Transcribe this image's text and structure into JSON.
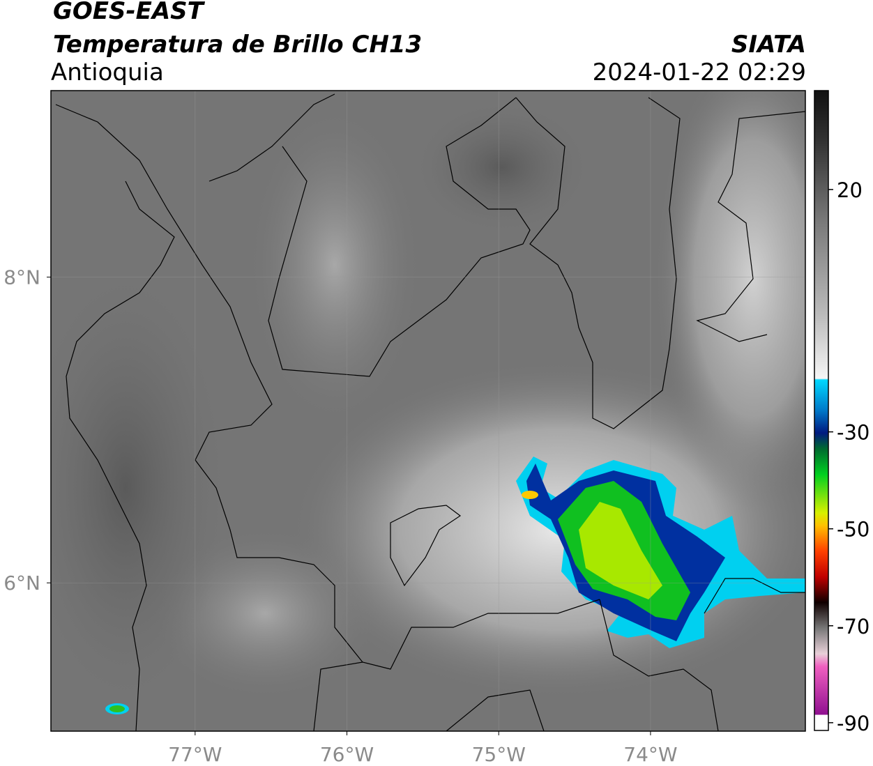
{
  "header": {
    "satellite": "GOES-EAST",
    "product": "Temperatura de Brillo CH13",
    "region": "Antioquia",
    "source": "SIATA",
    "datetime": "2024-01-22 02:29"
  },
  "map": {
    "xlim": [
      -77.95,
      -72.98
    ],
    "ylim": [
      5.03,
      9.22
    ],
    "xticks": [
      {
        "value": -77,
        "label": "77°W"
      },
      {
        "value": -76,
        "label": "76°W"
      },
      {
        "value": -75,
        "label": "75°W"
      },
      {
        "value": -74,
        "label": "74°W"
      }
    ],
    "yticks": [
      {
        "value": 8,
        "label": "8°N"
      },
      {
        "value": 6,
        "label": "6°N"
      }
    ]
  },
  "colorbar": {
    "lim": [
      -91.6,
      40.4
    ],
    "ticks": [
      20,
      -30,
      -50,
      -70,
      -90
    ]
  }
}
